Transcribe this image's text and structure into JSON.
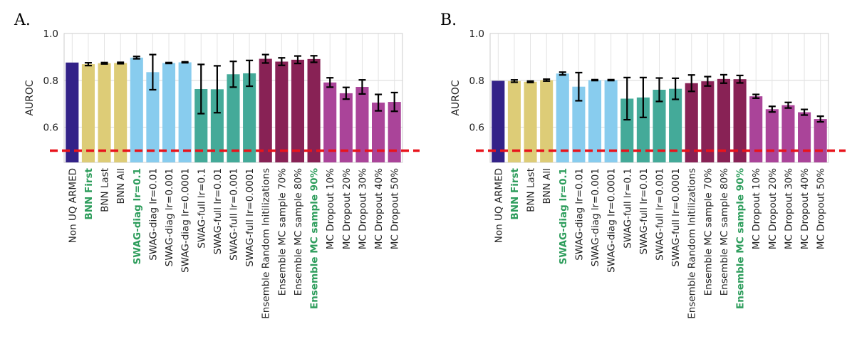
{
  "chart_data": [
    {
      "type": "bar",
      "panel_label": "A.",
      "ylabel": "AUROC",
      "ylim": [
        0.45,
        1.0
      ],
      "yticks": [
        0.6,
        0.8,
        1.0
      ],
      "ytick_labels": [
        "0.6",
        "0.8",
        "1.0"
      ],
      "reference_line": 0.5,
      "categories": [
        "Non UQ ARMED",
        "BNN First",
        "BNN Last",
        "BNN All",
        "SWAG-diag lr=0.1",
        "SWAG-diag lr=0.01",
        "SWAG-diag lr=0.001",
        "SWAG-diag lr=0.0001",
        "SWAG-full lr=0.1",
        "SWAG-full lr=0.01",
        "SWAG-full lr=0.001",
        "SWAG-full lr=0.0001",
        "Ensemble Random Initilizations",
        "Ensemble MC sample 70%",
        "Ensemble MC sample 80%",
        "Ensemble MC sample 90%",
        "MC Dropout 10%",
        "MC Dropout 20%",
        "MC Dropout 30%",
        "MC Dropout 40%",
        "MC Dropout 50%"
      ],
      "highlighted": [
        "BNN First",
        "SWAG-diag lr=0.1",
        "Ensemble MC sample 90%"
      ],
      "values": [
        0.876,
        0.869,
        0.873,
        0.874,
        0.897,
        0.835,
        0.874,
        0.877,
        0.763,
        0.762,
        0.826,
        0.83,
        0.892,
        0.88,
        0.888,
        0.891,
        0.791,
        0.745,
        0.772,
        0.705,
        0.708
      ],
      "errors": [
        0.0,
        0.006,
        0.003,
        0.003,
        0.005,
        0.075,
        0.002,
        0.002,
        0.105,
        0.1,
        0.055,
        0.055,
        0.018,
        0.016,
        0.016,
        0.014,
        0.02,
        0.025,
        0.03,
        0.035,
        0.04
      ]
    },
    {
      "type": "bar",
      "panel_label": "B.",
      "ylabel": "AUROC",
      "ylim": [
        0.45,
        1.0
      ],
      "yticks": [
        0.6,
        0.8,
        1.0
      ],
      "ytick_labels": [
        "0.6",
        "0.8",
        "1.0"
      ],
      "reference_line": 0.5,
      "categories": [
        "Non UQ ARMED",
        "BNN First",
        "BNN Last",
        "BNN All",
        "SWAG-diag lr=0.1",
        "SWAG-diag lr=0.01",
        "SWAG-diag lr=0.001",
        "SWAG-diag lr=0.0001",
        "SWAG-full lr=0.1",
        "SWAG-full lr=0.01",
        "SWAG-full lr=0.001",
        "SWAG-full lr=0.0001",
        "Ensemble Random Initilizations",
        "Ensemble MC sample 70%",
        "Ensemble MC sample 80%",
        "Ensemble MC sample 90%",
        "MC Dropout 10%",
        "MC Dropout 20%",
        "MC Dropout 30%",
        "MC Dropout 40%",
        "MC Dropout 50%"
      ],
      "highlighted": [
        "BNN First",
        "SWAG-diag lr=0.1",
        "Ensemble MC sample 90%"
      ],
      "values": [
        0.798,
        0.797,
        0.794,
        0.801,
        0.829,
        0.773,
        0.801,
        0.801,
        0.722,
        0.727,
        0.76,
        0.764,
        0.788,
        0.796,
        0.806,
        0.805,
        0.732,
        0.677,
        0.694,
        0.664,
        0.635
      ],
      "errors": [
        0.0,
        0.005,
        0.003,
        0.004,
        0.006,
        0.06,
        0.002,
        0.002,
        0.09,
        0.085,
        0.05,
        0.045,
        0.035,
        0.02,
        0.018,
        0.016,
        0.008,
        0.012,
        0.012,
        0.012,
        0.012
      ]
    }
  ],
  "colors": [
    "#332288",
    "#ddcc77",
    "#ddcc77",
    "#ddcc77",
    "#88ccee",
    "#88ccee",
    "#88ccee",
    "#88ccee",
    "#44aa99",
    "#44aa99",
    "#44aa99",
    "#44aa99",
    "#882255",
    "#882255",
    "#882255",
    "#882255",
    "#aa4499",
    "#aa4499",
    "#aa4499",
    "#aa4499",
    "#aa4499"
  ],
  "highlight_color": "#2e9d5c",
  "reference_line_color": "#e8141c"
}
